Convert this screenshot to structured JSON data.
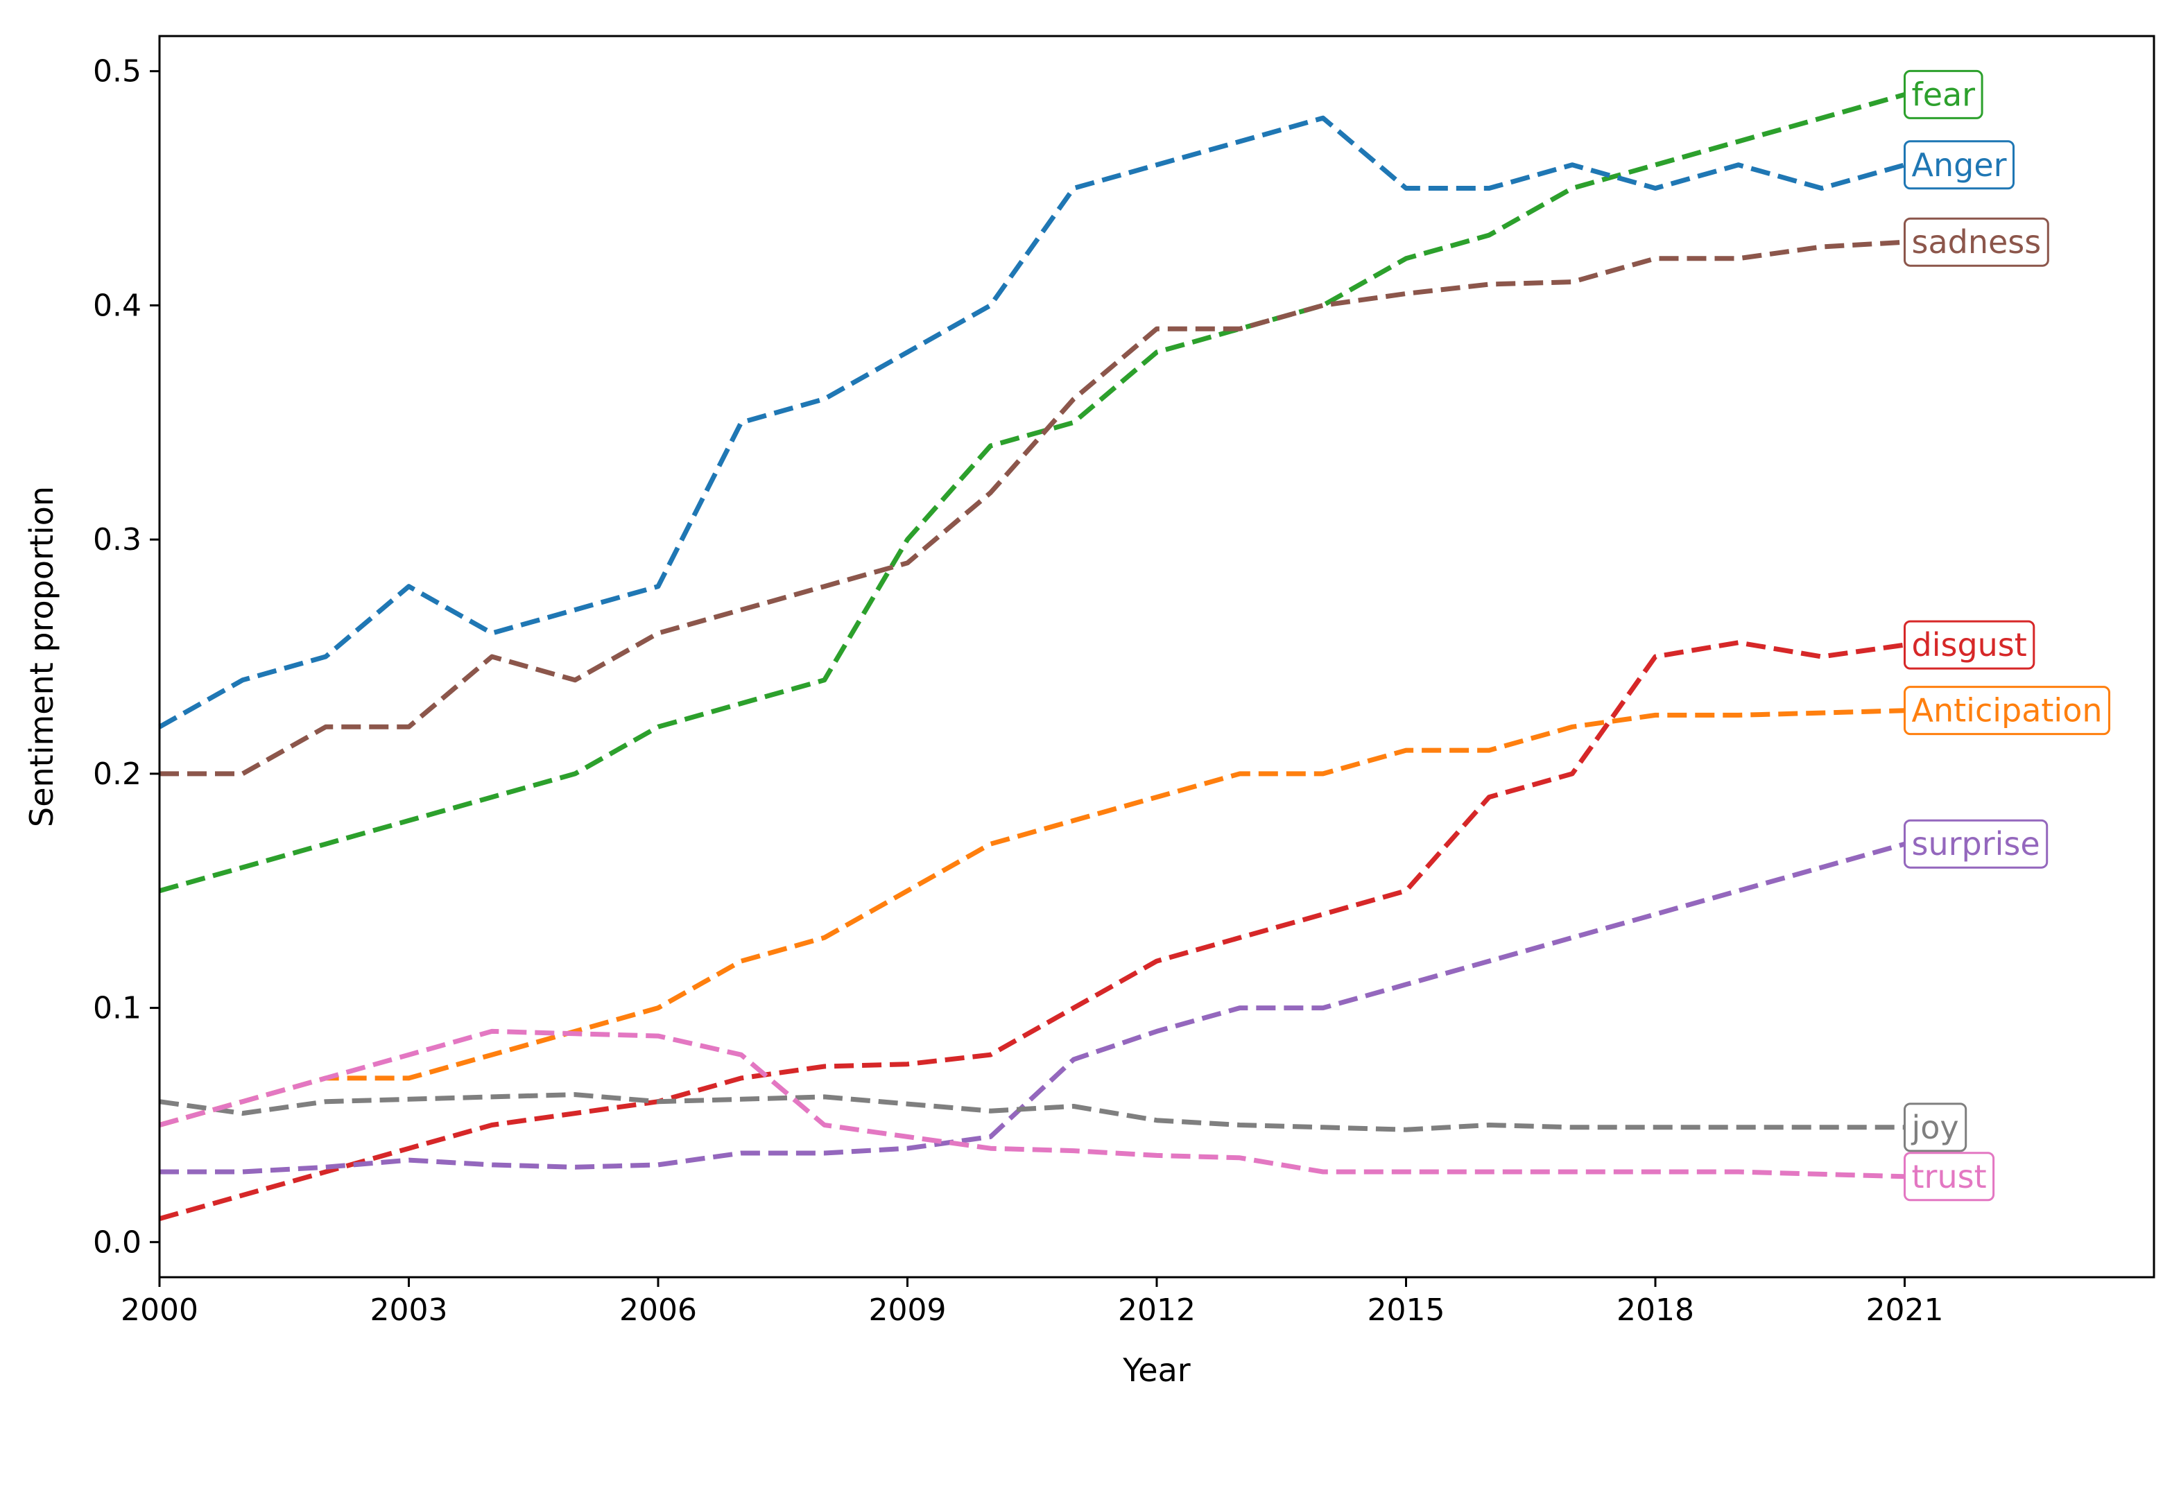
{
  "chart_data": {
    "type": "line",
    "title": "",
    "xlabel": "Year",
    "ylabel": "Sentiment proportion",
    "xlim": [
      2000,
      2024
    ],
    "ylim": [
      -0.015,
      0.515
    ],
    "x_ticks": [
      2000,
      2003,
      2006,
      2009,
      2012,
      2015,
      2018,
      2021
    ],
    "x_tick_labels": [
      "2000",
      "2003",
      "2006",
      "2009",
      "2012",
      "2015",
      "2018",
      "2021"
    ],
    "y_ticks": [
      0.0,
      0.1,
      0.2,
      0.3,
      0.4,
      0.5
    ],
    "y_tick_labels": [
      "0.0",
      "0.1",
      "0.2",
      "0.3",
      "0.4",
      "0.5"
    ],
    "grid": false,
    "legend": "none (inline labels at line ends)",
    "x": [
      2000,
      2001,
      2002,
      2003,
      2004,
      2005,
      2006,
      2007,
      2008,
      2009,
      2010,
      2011,
      2012,
      2013,
      2014,
      2015,
      2016,
      2017,
      2018,
      2019,
      2020,
      2021
    ],
    "series": [
      {
        "name": "fear",
        "color": "#2ca02c",
        "values": [
          0.15,
          0.16,
          0.17,
          0.18,
          0.19,
          0.2,
          0.22,
          0.23,
          0.24,
          0.3,
          0.34,
          0.35,
          0.38,
          0.39,
          0.4,
          0.42,
          0.43,
          0.45,
          0.46,
          0.47,
          0.48,
          0.49
        ]
      },
      {
        "name": "Anger",
        "color": "#1f77b4",
        "values": [
          0.22,
          0.24,
          0.25,
          0.28,
          0.26,
          0.27,
          0.28,
          0.35,
          0.36,
          0.38,
          0.4,
          0.45,
          0.46,
          0.47,
          0.48,
          0.45,
          0.45,
          0.46,
          0.45,
          0.46,
          0.45,
          0.46
        ]
      },
      {
        "name": "sadness",
        "color": "#8c564b",
        "values": [
          0.2,
          0.2,
          0.22,
          0.22,
          0.25,
          0.24,
          0.26,
          0.27,
          0.28,
          0.29,
          0.32,
          0.36,
          0.39,
          0.39,
          0.4,
          0.405,
          0.409,
          0.41,
          0.42,
          0.42,
          0.425,
          0.427
        ]
      },
      {
        "name": "disgust",
        "color": "#d62728",
        "values": [
          0.01,
          0.02,
          0.03,
          0.04,
          0.05,
          0.055,
          0.06,
          0.07,
          0.075,
          0.076,
          0.08,
          0.1,
          0.12,
          0.13,
          0.14,
          0.15,
          0.19,
          0.2,
          0.25,
          0.256,
          0.25,
          0.255
        ]
      },
      {
        "name": "Anticipation",
        "color": "#ff7f0e",
        "values": [
          0.05,
          0.06,
          0.07,
          0.07,
          0.08,
          0.09,
          0.1,
          0.12,
          0.13,
          0.15,
          0.17,
          0.18,
          0.19,
          0.2,
          0.2,
          0.21,
          0.21,
          0.22,
          0.225,
          0.225,
          0.226,
          0.227
        ]
      },
      {
        "name": "surprise",
        "color": "#9467bd",
        "values": [
          0.03,
          0.03,
          0.032,
          0.035,
          0.033,
          0.032,
          0.033,
          0.038,
          0.038,
          0.04,
          0.045,
          0.078,
          0.09,
          0.1,
          0.1,
          0.11,
          0.12,
          0.13,
          0.14,
          0.15,
          0.16,
          0.17
        ]
      },
      {
        "name": "joy",
        "color": "#7f7f7f",
        "values": [
          0.06,
          0.055,
          0.06,
          0.061,
          0.062,
          0.063,
          0.06,
          0.061,
          0.062,
          0.059,
          0.056,
          0.058,
          0.052,
          0.05,
          0.049,
          0.048,
          0.05,
          0.049,
          0.049,
          0.049,
          0.049,
          0.049
        ]
      },
      {
        "name": "trust",
        "color": "#e377c2",
        "values": [
          0.05,
          0.06,
          0.07,
          0.08,
          0.09,
          0.089,
          0.088,
          0.08,
          0.05,
          0.045,
          0.04,
          0.039,
          0.037,
          0.036,
          0.03,
          0.03,
          0.03,
          0.03,
          0.03,
          0.03,
          0.029,
          0.028
        ]
      }
    ]
  }
}
